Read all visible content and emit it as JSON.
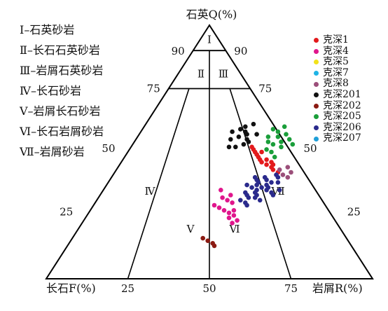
{
  "chart_data": {
    "type": "scatter",
    "subtype": "ternary",
    "apex_labels": {
      "top": "石英Q(%)",
      "left": "长石F(%)",
      "right": "岩屑R(%)"
    },
    "side_ticks": [
      "90",
      "75",
      "50",
      "25"
    ],
    "bottom_ticks": [
      "25",
      "50",
      "75"
    ],
    "field_labels": [
      "Ⅰ",
      "Ⅱ",
      "Ⅲ",
      "Ⅳ",
      "Ⅴ",
      "Ⅵ",
      "Ⅶ"
    ],
    "classification_legend": [
      "Ⅰ–石英砂岩",
      "Ⅱ–长石石英砂岩",
      "Ⅲ–岩屑石英砂岩",
      "Ⅳ–长石砂岩",
      "Ⅴ–岩屑长石砂岩",
      "Ⅵ–长石岩屑砂岩",
      "Ⅶ–岩屑砂岩"
    ],
    "series": [
      {
        "name": "克深1",
        "color": "#e31a1c",
        "points": [
          [
            45,
            45
          ],
          [
            50,
            39
          ],
          [
            46,
            43
          ],
          [
            47,
            42
          ],
          [
            52,
            37
          ],
          [
            48,
            41
          ],
          [
            43,
            48
          ],
          [
            44,
            47
          ],
          [
            51,
            38
          ],
          [
            49,
            40
          ],
          [
            46,
            46
          ],
          [
            42,
            50
          ],
          [
            47,
            44
          ],
          [
            50,
            41
          ],
          [
            45,
            47
          ]
        ]
      },
      {
        "name": "克深4",
        "color": "#e0168c",
        "points": [
          [
            30,
            42
          ],
          [
            25,
            45
          ],
          [
            27,
            41
          ],
          [
            22,
            46
          ],
          [
            32,
            38
          ],
          [
            28,
            39
          ],
          [
            26,
            43
          ],
          [
            31,
            40
          ],
          [
            24,
            44
          ],
          [
            29,
            37
          ],
          [
            33,
            40
          ],
          [
            35,
            36
          ],
          [
            23,
            47
          ],
          [
            27,
            44
          ]
        ]
      },
      {
        "name": "克深5",
        "color": "#f2e21a",
        "points": []
      },
      {
        "name": "克深7",
        "color": "#1fb4e6",
        "points": []
      },
      {
        "name": "克深8",
        "color": "#9b4f7a",
        "points": [
          [
            42,
            54
          ],
          [
            40,
            54
          ],
          [
            44,
            52
          ],
          [
            41,
            52
          ],
          [
            43,
            50
          ]
        ]
      },
      {
        "name": "克深201",
        "color": "#111111",
        "points": [
          [
            57,
            33
          ],
          [
            55,
            34
          ],
          [
            59,
            30
          ],
          [
            56,
            31
          ],
          [
            52,
            32
          ],
          [
            60,
            31
          ],
          [
            54,
            35
          ],
          [
            58,
            28
          ],
          [
            61,
            33
          ],
          [
            57,
            36
          ],
          [
            55,
            29
          ],
          [
            53,
            34
          ],
          [
            58,
            32
          ],
          [
            52,
            30
          ]
        ]
      },
      {
        "name": "克深202",
        "color": "#8b1a12",
        "points": [
          [
            14,
            44
          ],
          [
            15,
            42
          ],
          [
            16,
            40
          ],
          [
            13,
            45
          ]
        ]
      },
      {
        "name": "克深205",
        "color": "#1a9e3a",
        "points": [
          [
            54,
            45
          ],
          [
            56,
            43
          ],
          [
            52,
            46
          ],
          [
            58,
            42
          ],
          [
            50,
            44
          ],
          [
            55,
            47
          ],
          [
            53,
            49
          ],
          [
            57,
            45
          ],
          [
            59,
            40
          ],
          [
            48,
            46
          ],
          [
            51,
            42
          ],
          [
            56,
            40
          ],
          [
            53,
            43
          ],
          [
            60,
            43
          ],
          [
            54,
            41
          ]
        ]
      },
      {
        "name": "克深206",
        "color": "#2a2a8c",
        "points": [
          [
            36,
            50
          ],
          [
            33,
            48
          ],
          [
            38,
            46
          ],
          [
            35,
            47
          ],
          [
            32,
            46
          ],
          [
            37,
            49
          ],
          [
            40,
            51
          ],
          [
            34,
            52
          ],
          [
            30,
            46
          ],
          [
            39,
            48
          ],
          [
            36,
            45
          ],
          [
            34,
            44
          ],
          [
            31,
            50
          ],
          [
            38,
            52
          ],
          [
            35,
            54
          ],
          [
            40,
            47
          ],
          [
            33,
            53
          ],
          [
            37,
            43
          ],
          [
            32,
            48
          ],
          [
            39,
            45
          ],
          [
            41,
            50
          ],
          [
            35,
            50
          ],
          [
            36,
            48
          ],
          [
            38,
            50
          ],
          [
            34,
            47
          ],
          [
            31,
            44
          ],
          [
            29,
            47
          ],
          [
            37,
            46
          ],
          [
            40,
            44
          ],
          [
            33,
            45
          ]
        ]
      },
      {
        "name": "克深207",
        "color": "#1f9fd8",
        "points": []
      }
    ]
  }
}
